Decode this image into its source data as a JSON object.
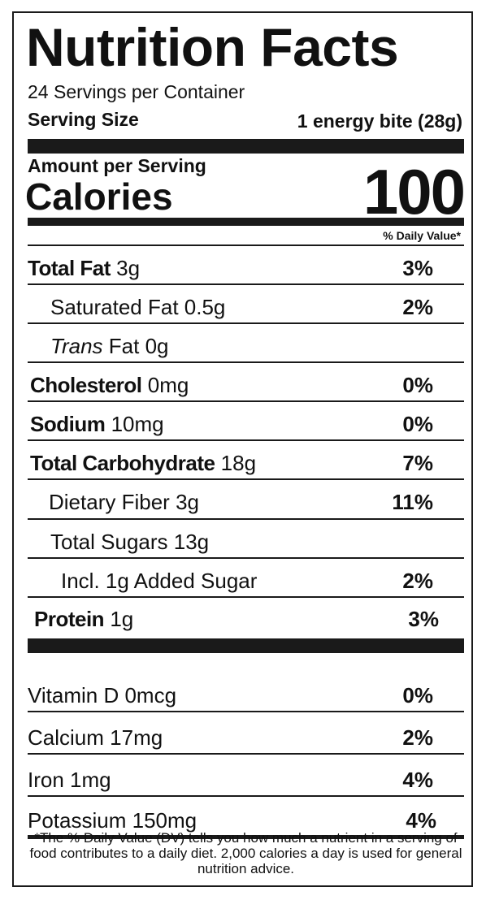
{
  "label": {
    "title": "Nutrition Facts",
    "servings_per_container": "24 Servings per Container",
    "serving_size_label": "Serving Size",
    "serving_size_value": "1 energy bite (28g)",
    "amount_per_serving": "Amount per Serving",
    "calories_label": "Calories",
    "calories_value": "100",
    "daily_value_header": "% Daily Value*"
  },
  "nutrients": {
    "total_fat": {
      "name": "Total Fat",
      "amount": "3g",
      "dv": "3%"
    },
    "saturated_fat": {
      "name": "Saturated Fat",
      "amount": "0.5g",
      "dv": "2%"
    },
    "trans_fat": {
      "name_italic": "Trans",
      "name": "Fat",
      "amount": "0g"
    },
    "cholesterol": {
      "name": "Cholesterol",
      "amount": "0mg",
      "dv": "0%"
    },
    "sodium": {
      "name": "Sodium",
      "amount": "10mg",
      "dv": "0%"
    },
    "total_carbohydrate": {
      "name": "Total Carbohydrate",
      "amount": "18g",
      "dv": "7%"
    },
    "dietary_fiber": {
      "name": "Dietary Fiber",
      "amount": "3g",
      "dv": "11%"
    },
    "total_sugars": {
      "name": "Total Sugars",
      "amount": "13g"
    },
    "added_sugar": {
      "name": "Incl. 1g Added Sugar",
      "dv": "2%"
    },
    "protein": {
      "name": "Protein",
      "amount": "1g",
      "dv": "3%"
    }
  },
  "vitamins": {
    "vitamin_d": {
      "name": "Vitamin D",
      "amount": "0mcg",
      "dv": "0%"
    },
    "calcium": {
      "name": "Calcium",
      "amount": "17mg",
      "dv": "2%"
    },
    "iron": {
      "name": "Iron",
      "amount": "1mg",
      "dv": "4%"
    },
    "potassium": {
      "name": "Potassium",
      "amount": "150mg",
      "dv": "4%"
    }
  },
  "footnote": "*The % Daily Value (DV) tells you how much a nutrient in a serving of food contributes to a daily diet. 2,000 calories a day is used for general nutrition advice."
}
